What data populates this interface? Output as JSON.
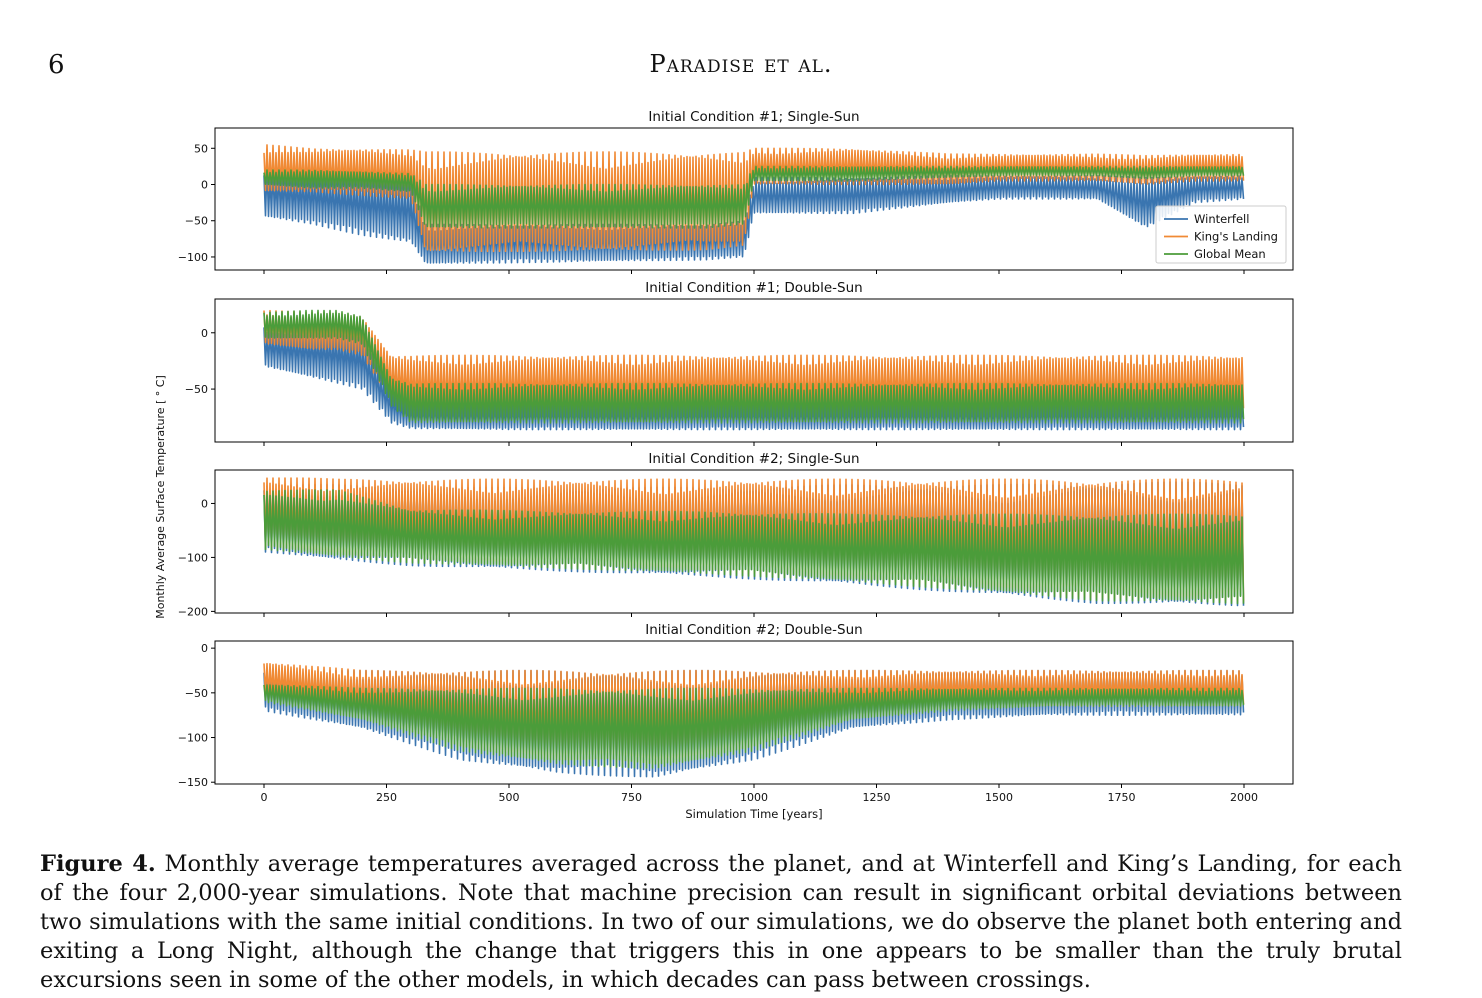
{
  "page": {
    "number": "6",
    "running_head": "Paradise et al."
  },
  "caption": {
    "label": "Figure 4.",
    "text": "Monthly average temperatures averaged across the planet, and at Winterfell and King’s Landing, for each of the four 2,000-year simulations. Note that machine precision can result in significant orbital deviations between two simulations with the same initial conditions. In two of our simulations, we do observe the planet both entering and exiting a Long Night, although the change that triggers this in one appears to be smaller than the truly brutal excursions seen in some of the other models, in which decades can pass between crossings."
  },
  "colors": {
    "winterfell": "#3a75b0",
    "kings_landing": "#f08a35",
    "global_mean": "#4b9c3a"
  },
  "chart_data": [
    {
      "type": "line",
      "title": "Initial Condition #1; Single-Sun",
      "xlabel": "",
      "ylabel": "",
      "xlim": [
        -100,
        2100
      ],
      "ylim": [
        -118,
        78
      ],
      "yticks": [
        50,
        0,
        -50,
        -100
      ],
      "ytick_labels": [
        "50",
        "0",
        "−50",
        "−100"
      ],
      "legend": {
        "placement": "lower-right",
        "entries": [
          "Winterfell",
          "King's Landing",
          "Global Mean"
        ]
      },
      "series": [
        {
          "name": "Winterfell",
          "x": [
            0,
            100,
            200,
            300,
            330,
            500,
            700,
            900,
            980,
            1000,
            1200,
            1400,
            1500,
            1700,
            1800,
            1900,
            2000
          ],
          "low": [
            -45,
            -55,
            -70,
            -80,
            -110,
            -108,
            -106,
            -104,
            -100,
            -40,
            -40,
            -25,
            -20,
            -20,
            -60,
            -25,
            -20
          ],
          "high": [
            25,
            20,
            15,
            10,
            -55,
            -55,
            -55,
            -55,
            -50,
            10,
            10,
            12,
            12,
            12,
            10,
            12,
            12
          ]
        },
        {
          "name": "King's Landing",
          "x": [
            0,
            100,
            200,
            300,
            330,
            500,
            700,
            900,
            980,
            1000,
            1200,
            1400,
            1500,
            1700,
            1800,
            1900,
            2000
          ],
          "low": [
            -10,
            -10,
            -15,
            -20,
            -95,
            -92,
            -92,
            -90,
            -85,
            0,
            0,
            0,
            5,
            5,
            0,
            5,
            5
          ],
          "high": [
            55,
            50,
            50,
            48,
            45,
            45,
            45,
            45,
            45,
            50,
            50,
            42,
            42,
            42,
            40,
            42,
            42
          ]
        },
        {
          "name": "Global Mean",
          "x": [
            0,
            100,
            200,
            300,
            330,
            500,
            700,
            900,
            980,
            1000,
            1200,
            1400,
            1500,
            1700,
            1800,
            1900,
            2000
          ],
          "low": [
            0,
            -5,
            -5,
            -10,
            -60,
            -60,
            -60,
            -60,
            -55,
            5,
            5,
            10,
            12,
            12,
            8,
            12,
            12
          ],
          "high": [
            20,
            20,
            18,
            15,
            0,
            0,
            0,
            0,
            0,
            25,
            25,
            25,
            25,
            25,
            25,
            25,
            25
          ]
        }
      ]
    },
    {
      "type": "line",
      "title": "Initial Condition #1; Double-Sun",
      "xlabel": "",
      "ylabel": "",
      "xlim": [
        -100,
        2100
      ],
      "ylim": [
        -97,
        30
      ],
      "yticks": [
        0,
        -50
      ],
      "ytick_labels": [
        "0",
        "−50"
      ],
      "series": [
        {
          "name": "Winterfell",
          "x": [
            0,
            100,
            150,
            200,
            260,
            300,
            500,
            1000,
            1500,
            2000
          ],
          "low": [
            -30,
            -40,
            -45,
            -50,
            -80,
            -85,
            -86,
            -86,
            -86,
            -86
          ],
          "high": [
            5,
            5,
            5,
            0,
            -50,
            -62,
            -62,
            -62,
            -62,
            -62
          ]
        },
        {
          "name": "King's Landing",
          "x": [
            0,
            100,
            150,
            200,
            260,
            300,
            500,
            1000,
            1500,
            2000
          ],
          "low": [
            -10,
            -15,
            -15,
            -20,
            -60,
            -70,
            -72,
            -72,
            -72,
            -72
          ],
          "high": [
            20,
            18,
            18,
            15,
            -20,
            -20,
            -20,
            -20,
            -20,
            -20
          ]
        },
        {
          "name": "Global Mean",
          "x": [
            0,
            100,
            150,
            200,
            260,
            300,
            500,
            1000,
            1500,
            2000
          ],
          "low": [
            -5,
            -5,
            -5,
            -10,
            -65,
            -80,
            -80,
            -80,
            -80,
            -80
          ],
          "high": [
            18,
            20,
            20,
            15,
            -40,
            -45,
            -45,
            -45,
            -45,
            -45
          ]
        }
      ]
    },
    {
      "type": "line",
      "title": "Initial Condition #2; Single-Sun",
      "xlabel": "",
      "ylabel": "",
      "xlim": [
        -100,
        2100
      ],
      "ylim": [
        -203,
        62
      ],
      "yticks": [
        0,
        -100,
        -200
      ],
      "ytick_labels": [
        "0",
        "−100",
        "−200"
      ],
      "series": [
        {
          "name": "Winterfell",
          "x": [
            0,
            150,
            300,
            600,
            900,
            1200,
            1500,
            1700,
            2000
          ],
          "low": [
            -90,
            -105,
            -115,
            -125,
            -135,
            -150,
            -170,
            -185,
            -190
          ],
          "high": [
            35,
            35,
            30,
            30,
            30,
            35,
            35,
            40,
            40
          ]
        },
        {
          "name": "King's Landing",
          "x": [
            0,
            150,
            300,
            600,
            900,
            1200,
            1500,
            1700,
            2000
          ],
          "low": [
            -80,
            -95,
            -105,
            -115,
            -125,
            -140,
            -160,
            -175,
            -182
          ],
          "high": [
            50,
            45,
            45,
            45,
            45,
            45,
            45,
            45,
            45
          ]
        },
        {
          "name": "Global Mean",
          "x": [
            0,
            150,
            300,
            600,
            900,
            1200,
            1500,
            1700,
            2000
          ],
          "low": [
            -85,
            -100,
            -110,
            -120,
            -130,
            -145,
            -165,
            -180,
            -186
          ],
          "high": [
            25,
            25,
            -10,
            -15,
            -15,
            -20,
            -20,
            -20,
            -20
          ]
        }
      ]
    },
    {
      "type": "line",
      "title": "Initial Condition #2; Double-Sun",
      "xlabel": "Simulation Time [years]",
      "ylabel": "",
      "xlim": [
        -100,
        2100
      ],
      "ylim": [
        -152,
        8
      ],
      "yticks": [
        0,
        -50,
        -100,
        -150
      ],
      "ytick_labels": [
        "0",
        "−50",
        "−100",
        "−150"
      ],
      "xticks": [
        0,
        250,
        500,
        750,
        1000,
        1250,
        1500,
        1750,
        2000
      ],
      "xtick_labels": [
        "0",
        "250",
        "500",
        "750",
        "1000",
        "1250",
        "1500",
        "1750",
        "2000"
      ],
      "series": [
        {
          "name": "Winterfell",
          "x": [
            0,
            200,
            400,
            600,
            800,
            1000,
            1200,
            1400,
            1600,
            2000
          ],
          "low": [
            -70,
            -90,
            -125,
            -140,
            -145,
            -125,
            -90,
            -80,
            -75,
            -75
          ],
          "high": [
            -25,
            -25,
            -25,
            -25,
            -25,
            -25,
            -25,
            -25,
            -25,
            -25
          ]
        },
        {
          "name": "King's Landing",
          "x": [
            0,
            200,
            400,
            600,
            800,
            1000,
            1200,
            1400,
            1600,
            2000
          ],
          "low": [
            -55,
            -75,
            -110,
            -125,
            -130,
            -110,
            -75,
            -65,
            -65,
            -65
          ],
          "high": [
            -15,
            -25,
            -25,
            -25,
            -25,
            -25,
            -25,
            -25,
            -25,
            -25
          ]
        },
        {
          "name": "Global Mean",
          "x": [
            0,
            200,
            400,
            600,
            800,
            1000,
            1200,
            1400,
            1600,
            2000
          ],
          "low": [
            -60,
            -80,
            -115,
            -130,
            -135,
            -115,
            -80,
            -70,
            -65,
            -65
          ],
          "high": [
            -40,
            -45,
            -45,
            -45,
            -45,
            -45,
            -45,
            -45,
            -45,
            -45
          ]
        }
      ]
    }
  ],
  "shared_ylabel": "Monthly Average Surface Temperature [ ° C]"
}
